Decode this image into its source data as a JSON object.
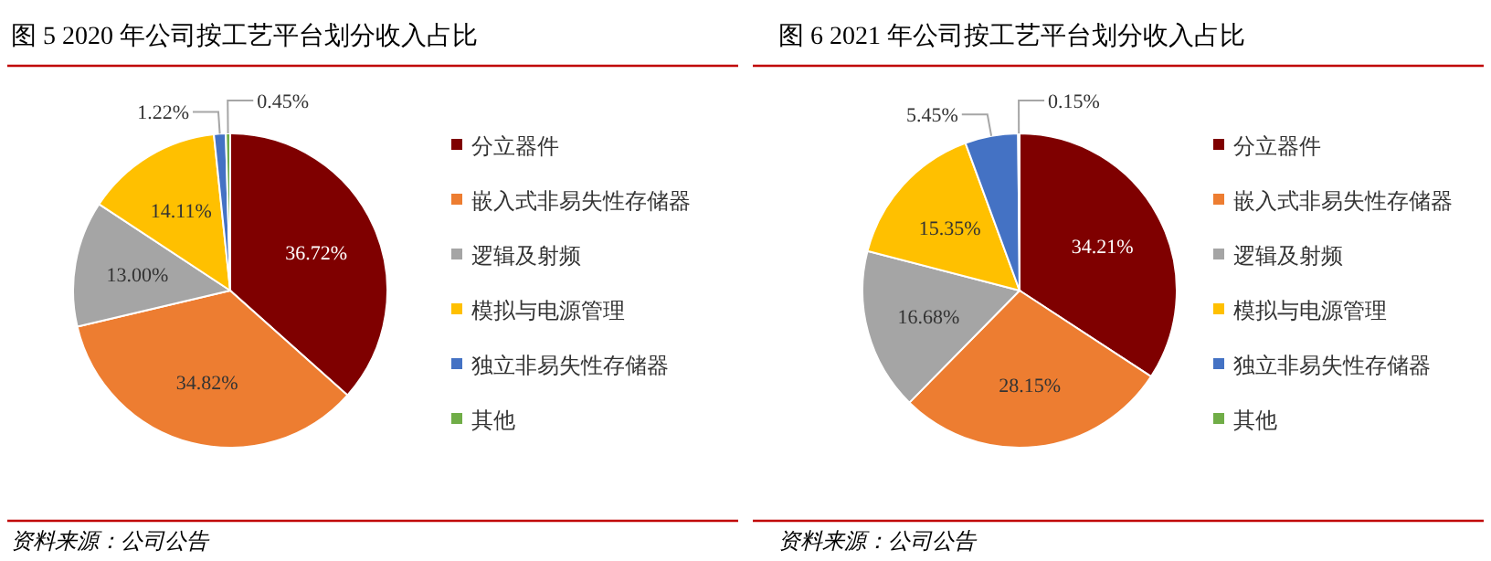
{
  "chart_data": [
    {
      "type": "pie",
      "title": "图 5 2020 年公司按工艺平台划分收入占比",
      "categories": [
        "分立器件",
        "嵌入式非易失性存储器",
        "逻辑及射频",
        "模拟与电源管理",
        "独立非易失性存储器",
        "其他"
      ],
      "values": [
        36.72,
        34.82,
        13.0,
        14.11,
        1.22,
        0.45
      ],
      "value_labels": [
        "36.72%",
        "34.82%",
        "13.00%",
        "14.11%",
        "1.22%",
        "0.45%"
      ],
      "colors": [
        "#7f0000",
        "#ed7d31",
        "#a5a5a5",
        "#ffc000",
        "#4472c4",
        "#70ad47"
      ],
      "legend": "right",
      "annotations": [
        "资料来源：公司公告"
      ]
    },
    {
      "type": "pie",
      "title": "图 6 2021 年公司按工艺平台划分收入占比",
      "categories": [
        "分立器件",
        "嵌入式非易失性存储器",
        "逻辑及射频",
        "模拟与电源管理",
        "独立非易失性存储器",
        "其他"
      ],
      "values": [
        34.21,
        28.15,
        16.68,
        15.35,
        5.45,
        0.15
      ],
      "value_labels": [
        "34.21%",
        "28.15%",
        "16.68%",
        "15.35%",
        "5.45%",
        "0.15%"
      ],
      "colors": [
        "#7f0000",
        "#ed7d31",
        "#a5a5a5",
        "#ffc000",
        "#4472c4",
        "#70ad47"
      ],
      "legend": "right",
      "annotations": [
        "资料来源：公司公告"
      ]
    }
  ]
}
